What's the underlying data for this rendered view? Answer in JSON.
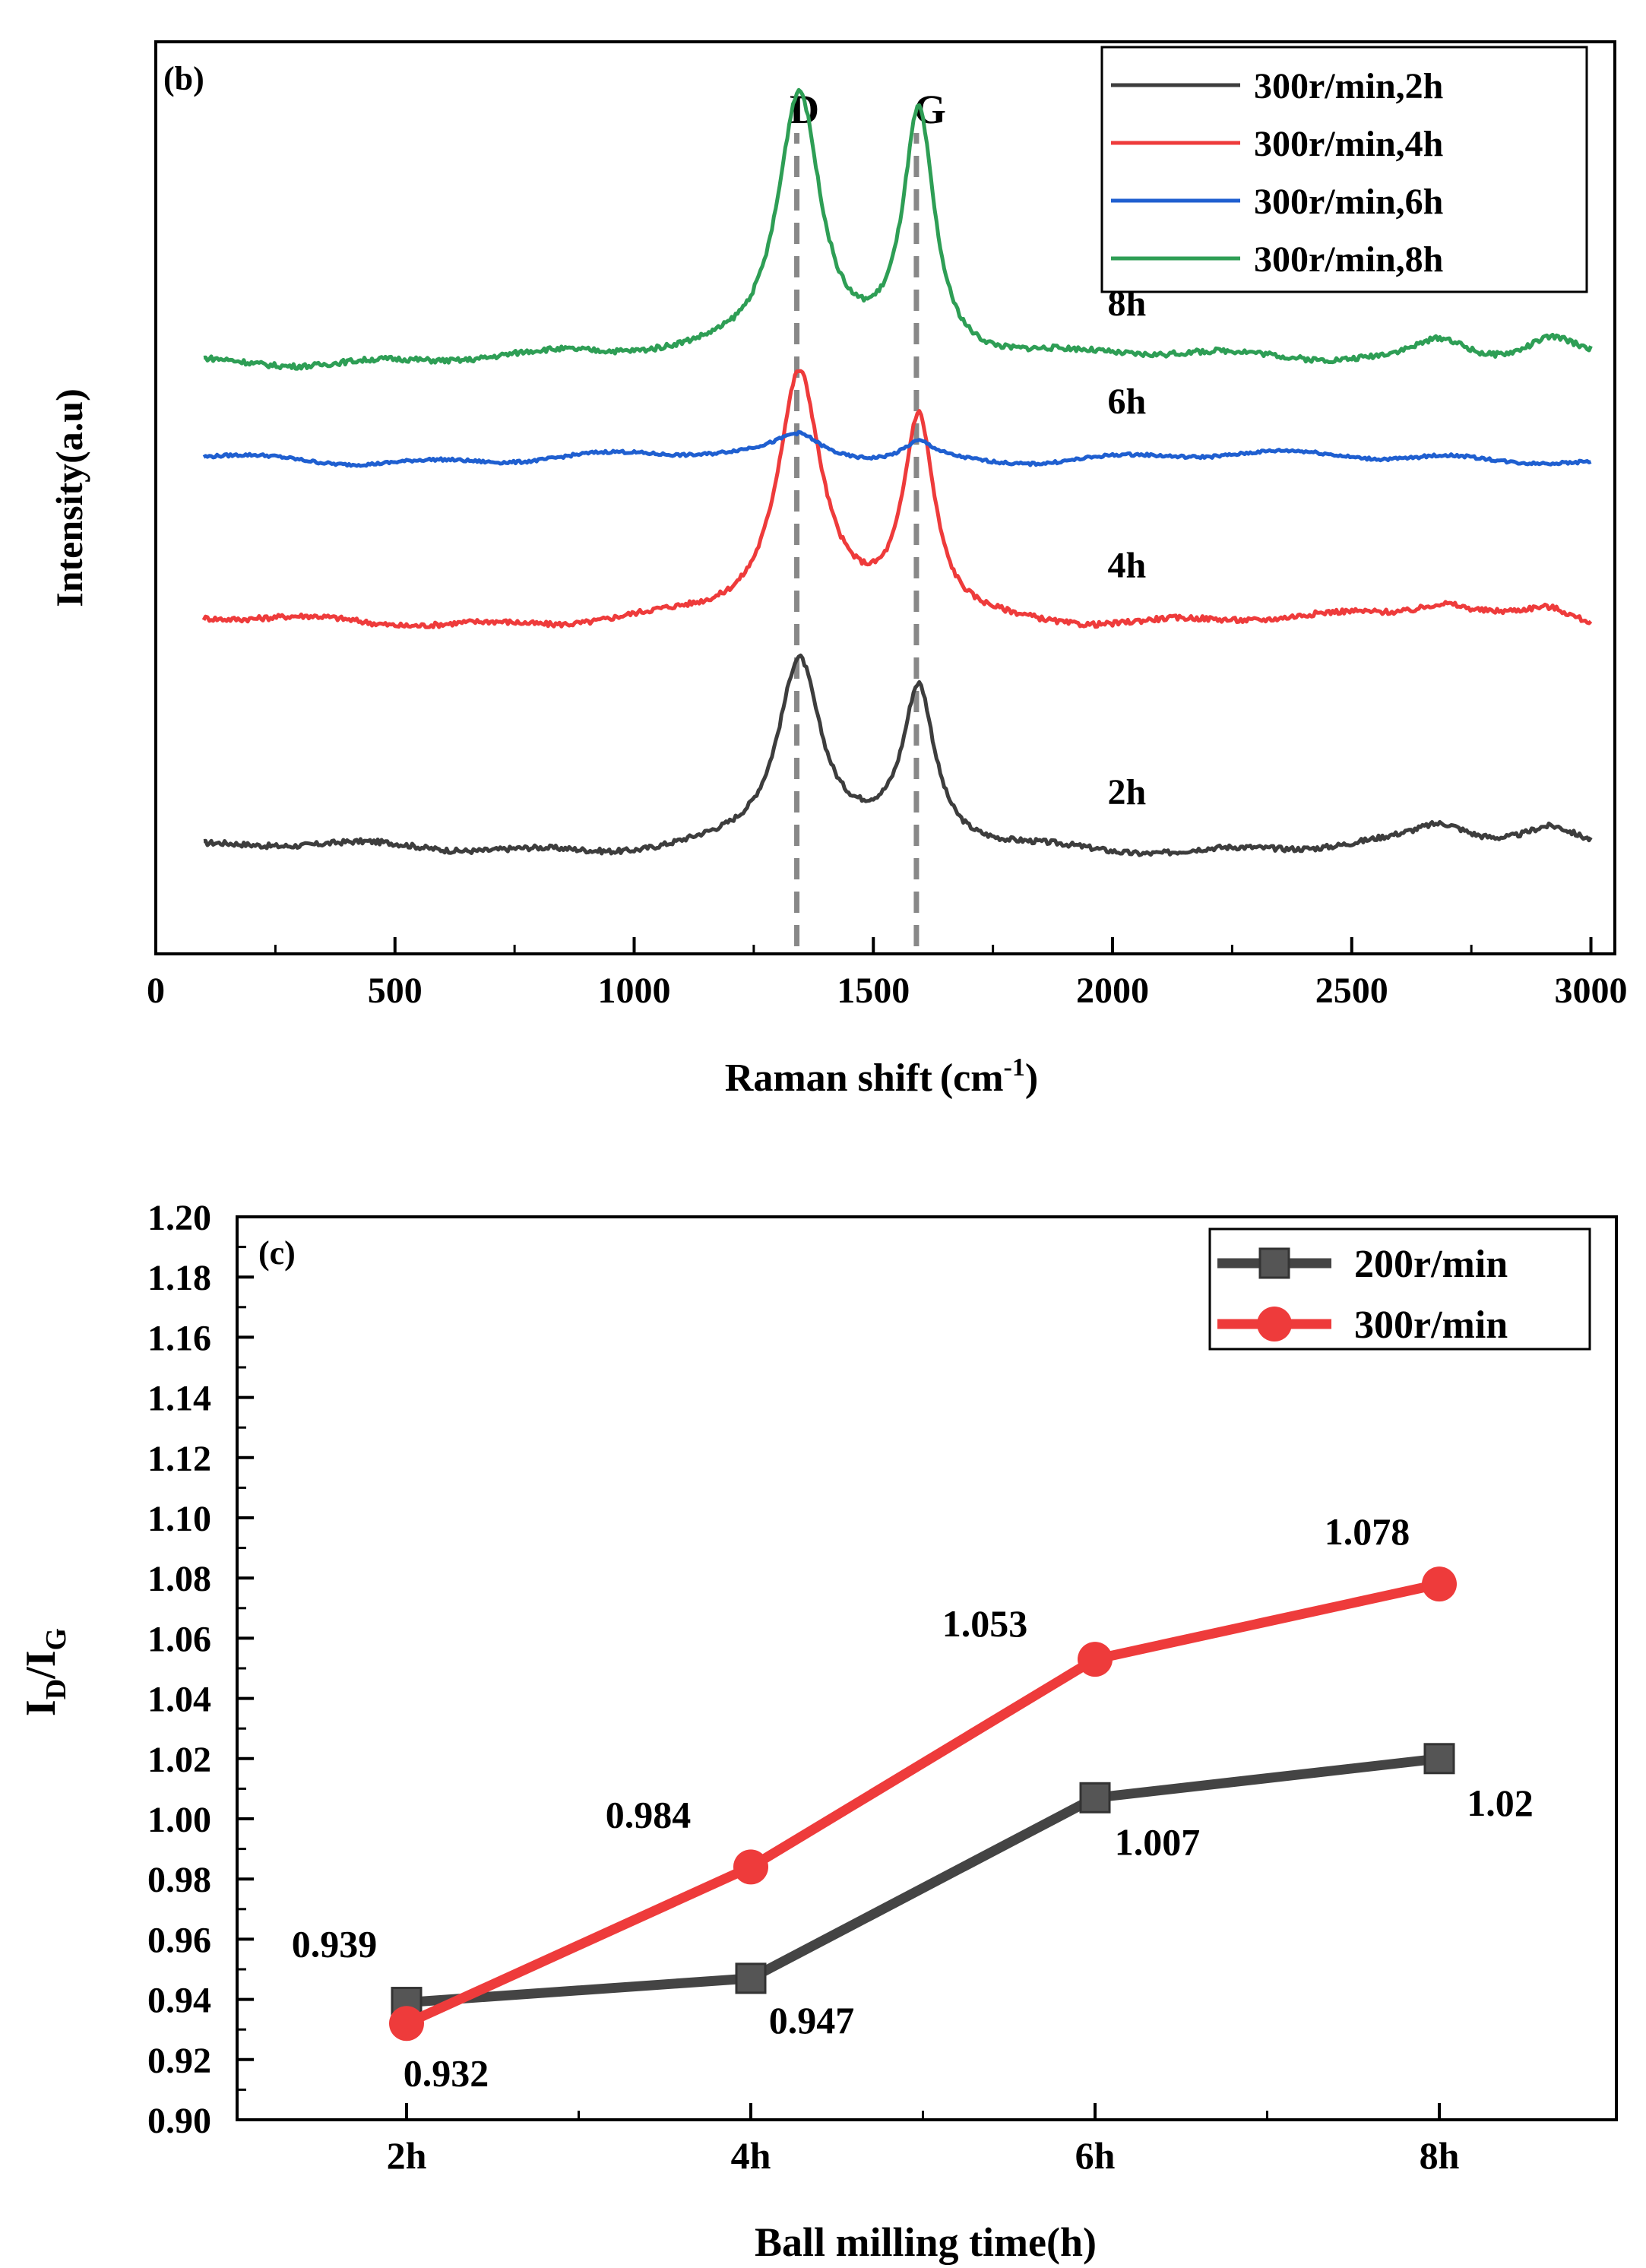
{
  "chart_data": [
    {
      "type": "line",
      "panel_label": "(b)",
      "title": "",
      "xlabel": "Raman shift",
      "xlabel_unit_base": "(cm",
      "xlabel_unit_sup": "-1",
      "xlabel_unit_close": ")",
      "ylabel": "Intensity(a.u)",
      "xlim": [
        0,
        3050
      ],
      "xticks": [
        0,
        500,
        1000,
        1500,
        2000,
        2500,
        3000
      ],
      "yticks_shown": false,
      "peaks": [
        {
          "label": "D",
          "position": 1340
        },
        {
          "label": "G",
          "position": 1590
        }
      ],
      "series": [
        {
          "name": "300r/min,2h",
          "label": "2h",
          "color": "#3d3d3d",
          "baseline": 0.5,
          "d_height": 8.0,
          "g_height": 6.5,
          "twod_height": 0.8
        },
        {
          "name": "300r/min,4h",
          "label": "4h",
          "color": "#ee3b3b",
          "baseline": 10.2,
          "d_height": 10.3,
          "g_height": 8.6,
          "twod_height": 0.7
        },
        {
          "name": "300r/min,6h",
          "label": "6h",
          "color": "#1f5fd0",
          "baseline": 17.2,
          "d_height": 0.9,
          "g_height": 0.8,
          "twod_height": 0.1
        },
        {
          "name": "300r/min,8h",
          "label": "8h",
          "color": "#2e9e55",
          "baseline": 21.4,
          "d_height": 11.5,
          "g_height": 10.4,
          "twod_height": 1.0
        }
      ],
      "legend_position": "top-right"
    },
    {
      "type": "line",
      "panel_label": "(c)",
      "title": "",
      "xlabel": "Ball milling time(h)",
      "ylabel_main": "I",
      "ylabel_sub1": "D",
      "ylabel_sep": "/I",
      "ylabel_sub2": "G",
      "categories": [
        "2h",
        "4h",
        "6h",
        "8h"
      ],
      "ylim": [
        0.9,
        1.2
      ],
      "yticks": [
        "0.90",
        "0.92",
        "0.94",
        "0.96",
        "0.98",
        "1.00",
        "1.02",
        "1.04",
        "1.06",
        "1.08",
        "1.10",
        "1.12",
        "1.14",
        "1.16",
        "1.18",
        "1.20"
      ],
      "series": [
        {
          "name": "200r/min",
          "marker": "square",
          "color": "#444444",
          "label_color": "#000000",
          "values": [
            0.939,
            0.947,
            1.007,
            1.02
          ],
          "labels": [
            "0.939",
            "0.947",
            "1.007",
            "1.02"
          ]
        },
        {
          "name": "300r/min",
          "marker": "circle",
          "color": "#ee3b3b",
          "label_color": "#ee1c1c",
          "values": [
            0.932,
            0.984,
            1.053,
            1.078
          ],
          "labels": [
            "0.932",
            "0.984",
            "1.053",
            "1.078"
          ]
        }
      ],
      "legend_position": "top-right"
    }
  ]
}
